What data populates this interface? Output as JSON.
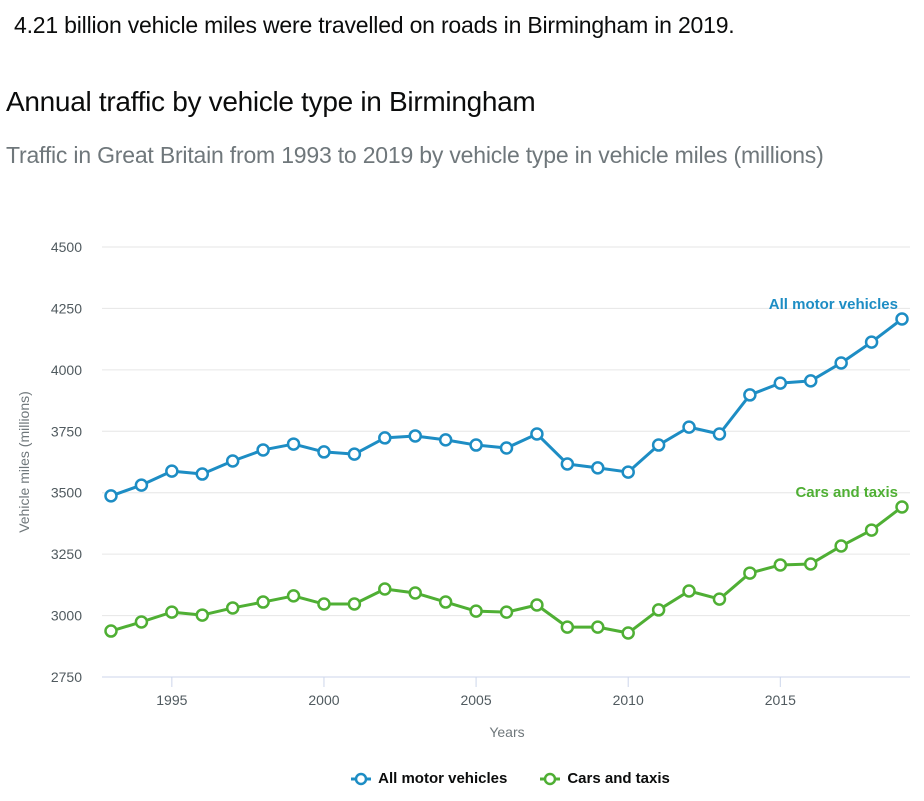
{
  "headline": "4.21 billion vehicle miles were travelled on roads in Birmingham in 2019.",
  "chart_data": {
    "type": "line",
    "title": "Annual traffic by vehicle type in Birmingham",
    "subtitle": "Traffic in Great Britain from 1993 to 2019 by vehicle type in vehicle miles (millions)",
    "xlabel": "Years",
    "ylabel": "Vehicle miles (millions)",
    "ylim": [
      2750,
      4500
    ],
    "xlim": [
      1993,
      2019
    ],
    "yticks": [
      2750,
      3000,
      3250,
      3500,
      3750,
      4000,
      4250,
      4500
    ],
    "xticks": [
      1995,
      2000,
      2005,
      2010,
      2015
    ],
    "grid": true,
    "legend_position": "bottom",
    "x": [
      1993,
      1994,
      1995,
      1996,
      1997,
      1998,
      1999,
      2000,
      2001,
      2002,
      2003,
      2004,
      2005,
      2006,
      2007,
      2008,
      2009,
      2010,
      2011,
      2012,
      2013,
      2014,
      2015,
      2016,
      2017,
      2018,
      2019
    ],
    "series": [
      {
        "name": "All motor vehicles",
        "color": "#1d8dc4",
        "values": [
          3487,
          3531,
          3588,
          3576,
          3629,
          3674,
          3698,
          3666,
          3657,
          3723,
          3731,
          3715,
          3694,
          3682,
          3739,
          3617,
          3601,
          3584,
          3694,
          3767,
          3739,
          3898,
          3946,
          3955,
          4028,
          4113,
          4207
        ]
      },
      {
        "name": "Cars and taxis",
        "color": "#4faf34",
        "values": [
          2937,
          2974,
          3014,
          3002,
          3031,
          3055,
          3080,
          3047,
          3047,
          3108,
          3092,
          3055,
          3018,
          3014,
          3043,
          2953,
          2953,
          2929,
          3023,
          3100,
          3067,
          3173,
          3206,
          3210,
          3283,
          3348,
          3442
        ]
      }
    ]
  }
}
